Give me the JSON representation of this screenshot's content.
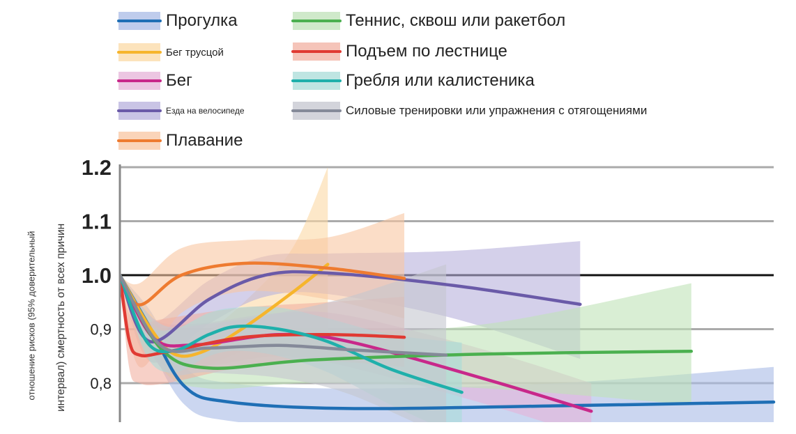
{
  "chart_data": {
    "type": "line",
    "title": "",
    "xlabel": "",
    "ylabel_lines": [
      "отношение рисков (95% доверительный",
      "интервал) смертность от всех причин"
    ],
    "ylim": [
      0.73,
      1.2
    ],
    "xlim": [
      0,
      100
    ],
    "yticks": [
      {
        "value": 1.2,
        "label": "1.2"
      },
      {
        "value": 1.1,
        "label": "1.1"
      },
      {
        "value": 1.0,
        "label": "1.0"
      },
      {
        "value": 0.9,
        "label": "0,9"
      },
      {
        "value": 0.8,
        "label": "0,8"
      }
    ],
    "grid": true,
    "legend_placement": "top",
    "series": [
      {
        "name": "Прогулка",
        "color": "#1f6fb5",
        "band": "#a9bbe6",
        "x": [
          0,
          4.6,
          9.9,
          16.8,
          35,
          67,
          100
        ],
        "y": [
          1.0,
          0.903,
          0.794,
          0.765,
          0.753,
          0.758,
          0.765
        ],
        "lo": [
          1.0,
          0.87,
          0.76,
          0.73,
          0.715,
          0.715,
          0.7
        ],
        "hi": [
          1.0,
          0.935,
          0.83,
          0.8,
          0.79,
          0.8,
          0.83
        ]
      },
      {
        "name": "Бег трусцой",
        "color": "#f6b52c",
        "band": "#fbd9a5",
        "x": [
          0,
          4.6,
          8.3,
          12.6,
          19,
          26.4,
          31.8
        ],
        "y": [
          1.0,
          0.903,
          0.854,
          0.858,
          0.903,
          0.968,
          1.02
        ],
        "lo": [
          1.0,
          0.88,
          0.83,
          0.83,
          0.86,
          0.88,
          0.87
        ],
        "hi": [
          1.0,
          0.93,
          0.88,
          0.89,
          0.95,
          1.05,
          1.2
        ]
      },
      {
        "name": "Бег",
        "color": "#c8288a",
        "band": "#e6b3d8",
        "x": [
          0,
          5.1,
          11.5,
          24.3,
          35,
          56.3,
          72.1
        ],
        "y": [
          1.0,
          0.884,
          0.871,
          0.89,
          0.877,
          0.806,
          0.748
        ],
        "lo": [
          1.0,
          0.85,
          0.83,
          0.85,
          0.83,
          0.76,
          0.7
        ],
        "hi": [
          1.0,
          0.92,
          0.91,
          0.93,
          0.925,
          0.86,
          0.8
        ]
      },
      {
        "name": "Езда на велосипеде",
        "color": "#6a5aa8",
        "band": "#b7b0dc",
        "x": [
          0,
          4.6,
          13.6,
          22.2,
          31.8,
          51,
          70.4
        ],
        "y": [
          1.0,
          0.877,
          0.955,
          1.0,
          1.004,
          0.981,
          0.946
        ],
        "lo": [
          1.0,
          0.84,
          0.91,
          0.96,
          0.965,
          0.92,
          0.845
        ],
        "hi": [
          1.0,
          0.91,
          0.99,
          1.035,
          1.04,
          1.045,
          1.063
        ]
      },
      {
        "name": "Плавание",
        "color": "#ee7b30",
        "band": "#f8c6a2",
        "x": [
          0,
          3,
          9.4,
          19,
          31.8,
          43.5
        ],
        "y": [
          1.0,
          0.945,
          1.0,
          1.022,
          1.013,
          0.994
        ],
        "lo": [
          1.0,
          0.83,
          0.93,
          0.97,
          0.955,
          0.92
        ],
        "hi": [
          1.0,
          0.985,
          1.05,
          1.065,
          1.07,
          1.115
        ]
      },
      {
        "name": "Теннис, сквош или ракетбол",
        "color": "#4bb04f",
        "band": "#bfe2b8",
        "x": [
          0,
          6.2,
          13.6,
          29.6,
          56.3,
          87.4
        ],
        "y": [
          1.0,
          0.865,
          0.828,
          0.843,
          0.854,
          0.859
        ],
        "lo": [
          1.0,
          0.83,
          0.79,
          0.8,
          0.79,
          0.76
        ],
        "hi": [
          1.0,
          0.9,
          0.87,
          0.89,
          0.91,
          0.985
        ]
      },
      {
        "name": "Подъем по лестнице",
        "color": "#e03a33",
        "band": "#f2b0a2",
        "x": [
          0,
          1.4,
          3,
          7.2,
          19,
          31.8,
          43.5
        ],
        "y": [
          1.0,
          0.88,
          0.852,
          0.858,
          0.885,
          0.89,
          0.885
        ],
        "lo": [
          1.0,
          0.83,
          0.8,
          0.8,
          0.83,
          0.84,
          0.83
        ],
        "hi": [
          1.0,
          0.93,
          0.91,
          0.92,
          0.94,
          0.95,
          0.96
        ]
      },
      {
        "name": "Гребля или калистеника",
        "color": "#1fb0ab",
        "band": "#a9dcd8",
        "x": [
          0,
          4.1,
          8.3,
          13.6,
          17.9,
          24.3,
          31.8,
          41.4,
          52.3
        ],
        "y": [
          1.0,
          0.877,
          0.86,
          0.89,
          0.905,
          0.9,
          0.877,
          0.826,
          0.783
        ],
        "lo": [
          1.0,
          0.85,
          0.82,
          0.85,
          0.86,
          0.85,
          0.82,
          0.76,
          0.7
        ],
        "hi": [
          1.0,
          0.91,
          0.9,
          0.93,
          0.94,
          0.94,
          0.92,
          0.89,
          0.875
        ]
      },
      {
        "name": "Силовые тренировки или упражнения с отягощениями",
        "color": "#858a99",
        "band": "#c4c6cf",
        "x": [
          0,
          6.2,
          13.6,
          24.3,
          35,
          49.9
        ],
        "y": [
          1.0,
          0.87,
          0.865,
          0.87,
          0.862,
          0.852
        ],
        "lo": [
          1.0,
          0.83,
          0.82,
          0.81,
          0.78,
          0.7
        ],
        "hi": [
          1.0,
          0.91,
          0.91,
          0.93,
          0.96,
          1.02
        ]
      }
    ]
  }
}
